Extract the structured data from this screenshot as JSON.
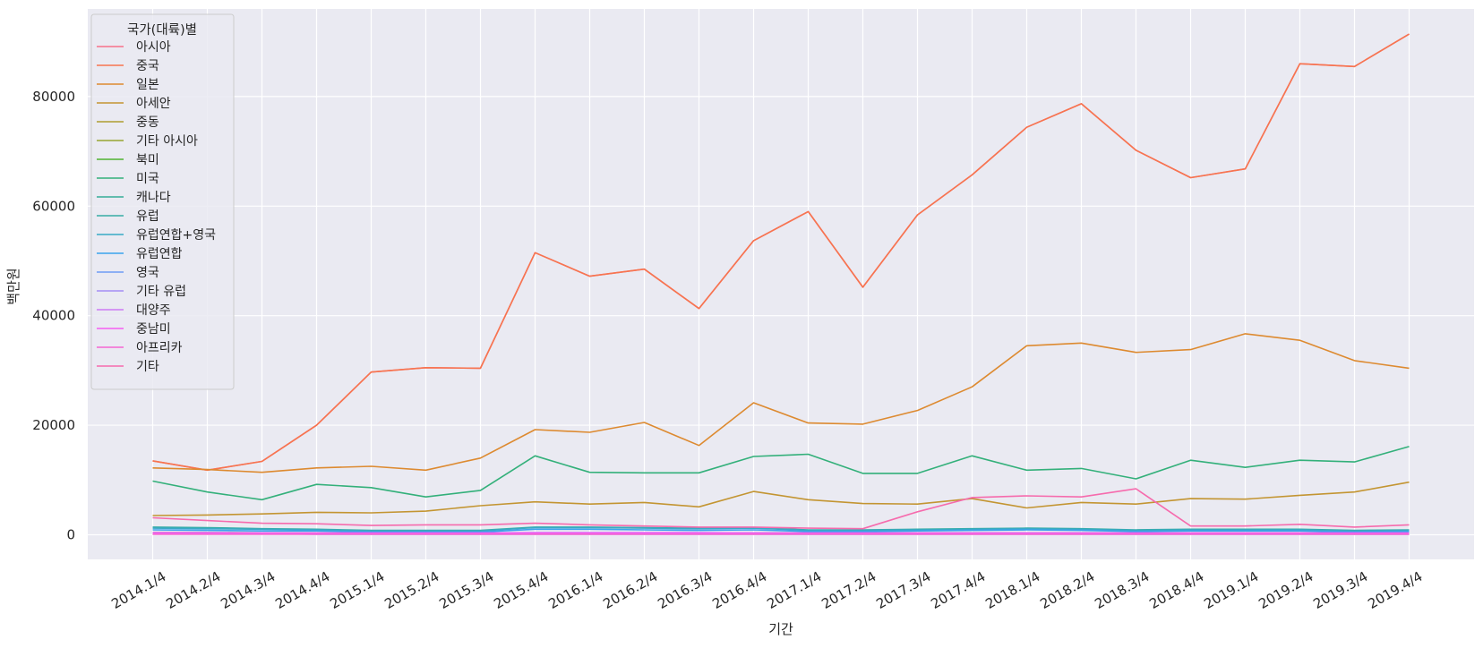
{
  "chart_data": {
    "type": "line",
    "xlabel": "기간",
    "ylabel": "백만원",
    "ylim": [
      -4500,
      96000
    ],
    "yticks": [
      0,
      20000,
      40000,
      60000,
      80000
    ],
    "grid": true,
    "legend_title": "국가(대륙)별",
    "legend_position": "top-left",
    "categories": [
      "2014.1/4",
      "2014.2/4",
      "2014.3/4",
      "2014.4/4",
      "2015.1/4",
      "2015.2/4",
      "2015.3/4",
      "2015.4/4",
      "2016.1/4",
      "2016.2/4",
      "2016.3/4",
      "2016.4/4",
      "2017.1/4",
      "2017.2/4",
      "2017.3/4",
      "2017.4/4",
      "2018.1/4",
      "2018.2/4",
      "2018.3/4",
      "2018.4/4",
      "2019.1/4",
      "2019.2/4",
      "2019.3/4",
      "2019.4/4"
    ],
    "series": [
      {
        "name": "아시아",
        "color": "#f77189",
        "values": [
          13500,
          11800,
          13400,
          20000,
          29700,
          30500,
          30400,
          51500,
          47200,
          48500,
          41300,
          53700,
          59000,
          45200,
          58400,
          65700,
          74400,
          78700,
          70200,
          65200,
          66800,
          86000,
          85500,
          91400
        ]
      },
      {
        "name": "중국",
        "color": "#f7754f",
        "values": [
          13500,
          11800,
          13400,
          20000,
          29700,
          30500,
          30400,
          51500,
          47200,
          48500,
          41300,
          53700,
          59000,
          45200,
          58400,
          65700,
          74400,
          78700,
          70200,
          65200,
          66800,
          86000,
          85500,
          91400
        ]
      },
      {
        "name": "일본",
        "color": "#dd8a30",
        "values": [
          12200,
          11900,
          11400,
          12200,
          12500,
          11800,
          14000,
          19200,
          18700,
          20500,
          16300,
          24100,
          20400,
          20200,
          22700,
          27000,
          34500,
          35000,
          33300,
          33800,
          36700,
          35500,
          31800,
          30400
        ]
      },
      {
        "name": "아세안",
        "color": "#c39532",
        "values": [
          3500,
          3600,
          3800,
          4100,
          4000,
          4300,
          5300,
          6000,
          5600,
          5900,
          5100,
          7900,
          6400,
          5700,
          5600,
          6600,
          4900,
          5900,
          5600,
          6600,
          6500,
          7200,
          7800,
          9600
        ]
      },
      {
        "name": "중동",
        "color": "#ae9d31",
        "values": [
          400,
          400,
          350,
          350,
          300,
          300,
          300,
          300,
          300,
          300,
          300,
          300,
          300,
          300,
          300,
          300,
          300,
          300,
          300,
          300,
          300,
          300,
          300,
          300
        ]
      },
      {
        "name": "기타 아시아",
        "color": "#97a431",
        "values": [
          300,
          300,
          300,
          300,
          300,
          300,
          300,
          300,
          300,
          300,
          300,
          300,
          300,
          300,
          300,
          300,
          300,
          300,
          300,
          300,
          300,
          300,
          300,
          300
        ]
      },
      {
        "name": "북미",
        "color": "#50b131",
        "values": [
          200,
          200,
          200,
          200,
          200,
          200,
          200,
          200,
          200,
          200,
          200,
          200,
          200,
          200,
          200,
          200,
          200,
          200,
          200,
          200,
          200,
          200,
          200,
          200
        ]
      },
      {
        "name": "미국",
        "color": "#33b07a",
        "values": [
          9800,
          7800,
          6400,
          9200,
          8600,
          6900,
          8100,
          14400,
          11400,
          11300,
          11300,
          14300,
          14700,
          11200,
          11200,
          14400,
          11800,
          12100,
          10200,
          13600,
          12300,
          13600,
          13300,
          16100
        ]
      },
      {
        "name": "캐나다",
        "color": "#35ac97",
        "values": [
          300,
          300,
          300,
          300,
          300,
          300,
          300,
          300,
          300,
          300,
          300,
          300,
          300,
          300,
          300,
          300,
          300,
          300,
          300,
          300,
          300,
          300,
          300,
          300
        ]
      },
      {
        "name": "유럽",
        "color": "#36ada4",
        "values": [
          1400,
          1300,
          1100,
          1000,
          800,
          800,
          800,
          1400,
          1400,
          1300,
          1200,
          1300,
          900,
          900,
          1000,
          1100,
          1200,
          1100,
          900,
          1000,
          1000,
          1000,
          800,
          900
        ]
      },
      {
        "name": "유럽연합+영국",
        "color": "#38a9c5",
        "values": [
          1200,
          1100,
          1000,
          900,
          700,
          700,
          700,
          1300,
          1300,
          1200,
          1100,
          1200,
          800,
          800,
          900,
          1000,
          1100,
          1000,
          800,
          900,
          900,
          900,
          700,
          800
        ]
      },
      {
        "name": "유럽연합",
        "color": "#3ba3ec",
        "values": [
          900,
          800,
          700,
          700,
          500,
          500,
          500,
          1000,
          1000,
          900,
          800,
          900,
          600,
          600,
          700,
          800,
          900,
          800,
          600,
          700,
          700,
          700,
          500,
          600
        ]
      },
      {
        "name": "영국",
        "color": "#6e9bf4",
        "values": [
          300,
          300,
          300,
          200,
          200,
          200,
          200,
          300,
          300,
          300,
          300,
          300,
          200,
          200,
          200,
          200,
          200,
          200,
          200,
          200,
          200,
          200,
          200,
          200
        ]
      },
      {
        "name": "기타 유럽",
        "color": "#a48cf4",
        "values": [
          200,
          200,
          200,
          100,
          100,
          100,
          100,
          100,
          100,
          100,
          100,
          100,
          100,
          100,
          100,
          100,
          100,
          100,
          100,
          100,
          100,
          100,
          100,
          100
        ]
      },
      {
        "name": "대양주",
        "color": "#cc7af4",
        "values": [
          400,
          400,
          300,
          300,
          300,
          300,
          300,
          400,
          400,
          400,
          400,
          300,
          300,
          300,
          300,
          300,
          300,
          300,
          300,
          300,
          300,
          300,
          300,
          300
        ]
      },
      {
        "name": "중남미",
        "color": "#f45cf2",
        "values": [
          300,
          300,
          300,
          300,
          300,
          300,
          300,
          300,
          300,
          300,
          300,
          300,
          300,
          300,
          300,
          300,
          300,
          300,
          300,
          300,
          300,
          300,
          300,
          300
        ]
      },
      {
        "name": "아프리카",
        "color": "#f566d1",
        "values": [
          100,
          100,
          100,
          100,
          100,
          100,
          100,
          100,
          100,
          100,
          100,
          100,
          100,
          100,
          100,
          100,
          100,
          100,
          100,
          100,
          100,
          100,
          100,
          100
        ]
      },
      {
        "name": "기타",
        "color": "#f66bad",
        "values": [
          3100,
          2600,
          2100,
          2000,
          1700,
          1800,
          1800,
          2100,
          1800,
          1600,
          1400,
          1400,
          1200,
          1100,
          4200,
          6800,
          7100,
          6900,
          8400,
          1600,
          1600,
          1900,
          1400,
          1800
        ]
      }
    ]
  }
}
